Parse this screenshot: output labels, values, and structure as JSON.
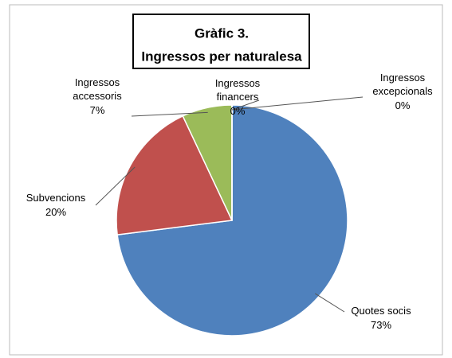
{
  "chart_data": {
    "type": "pie",
    "title": "Gràfic 3.",
    "subtitle": "Ingressos per naturalesa",
    "categories": [
      "Quotes socis",
      "Subvencions",
      "Ingressos accessoris",
      "Ingressos financers",
      "Ingressos excepcionals"
    ],
    "values": [
      73,
      20,
      7,
      0,
      0
    ],
    "value_labels": [
      "73%",
      "20%",
      "7%",
      "0%",
      "0%"
    ],
    "colors": [
      "#4f81bd",
      "#c0504d",
      "#9bbb59",
      "#8064a2",
      "#4bacc6"
    ]
  }
}
